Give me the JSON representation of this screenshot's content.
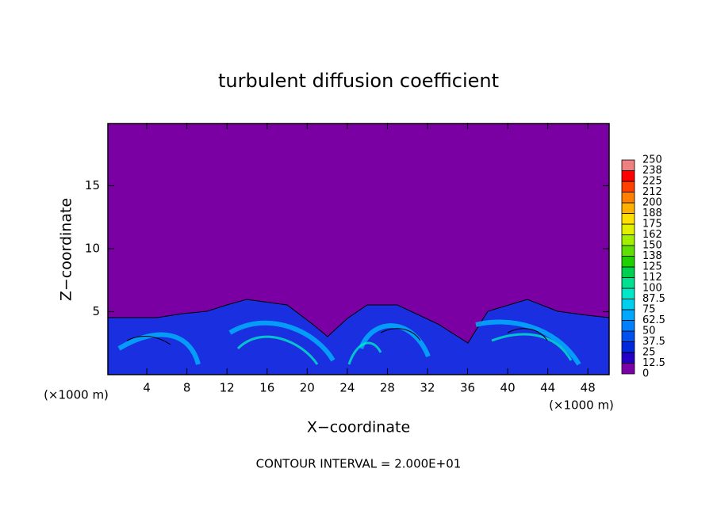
{
  "chart_data": {
    "type": "contour",
    "title": "turbulent diffusion coefficient",
    "xlabel": "X−coordinate",
    "ylabel": "Z−coordinate",
    "x_unit_left": "(×1000 m)",
    "x_unit_right": "(×1000 m)",
    "note": "CONTOUR INTERVAL = 2.000E+01",
    "xlim": [
      0,
      50
    ],
    "xticks": [
      4,
      8,
      12,
      16,
      20,
      24,
      28,
      32,
      36,
      40,
      44,
      48
    ],
    "ylim": [
      0,
      20
    ],
    "yticks": [
      5,
      10,
      15
    ],
    "colorbar_levels": [
      0,
      12.5,
      25,
      37.5,
      50,
      62.5,
      75,
      87.5,
      100,
      112,
      125,
      138,
      150,
      162,
      175,
      188,
      200,
      212,
      225,
      238,
      250
    ],
    "colorbar_colors": [
      "#7b00a8",
      "#2400c4",
      "#0028dc",
      "#0050f0",
      "#0080ff",
      "#00a8ff",
      "#00d0f0",
      "#00e8c8",
      "#00e090",
      "#00d050",
      "#20d000",
      "#60e000",
      "#a0f000",
      "#e0f000",
      "#ffe000",
      "#ffb000",
      "#ff8000",
      "#ff4000",
      "#ff0000",
      "#f08080"
    ]
  }
}
